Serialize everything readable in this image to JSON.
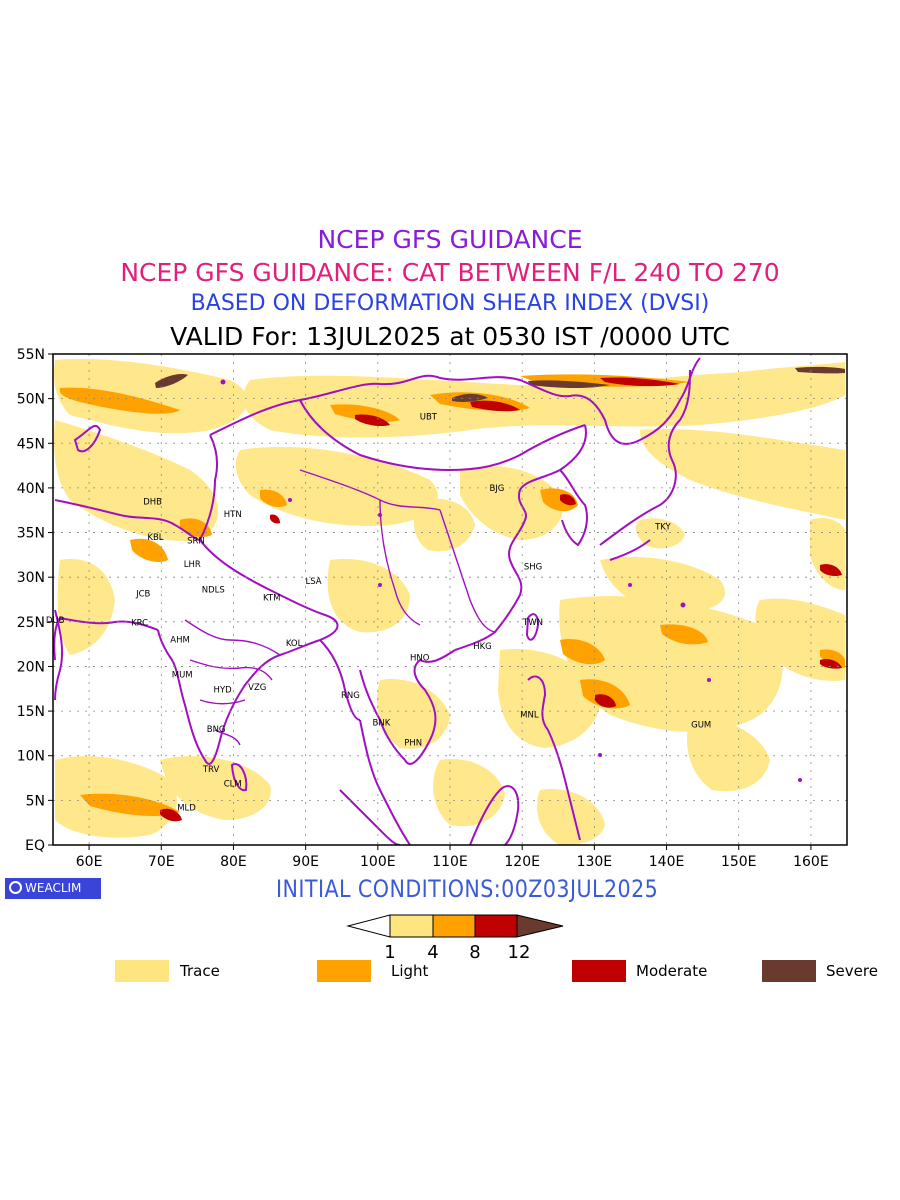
{
  "titles": {
    "line1": "NCEP GFS GUIDANCE",
    "line2": "NCEP GFS GUIDANCE: CAT BETWEEN F/L 240 TO 270",
    "line3": "BASED ON DEFORMATION SHEAR INDEX (DVSI)",
    "line4": "VALID For: 13JUL2025 at 0530 IST /0000 UTC"
  },
  "colors": {
    "line1": "#8a1bd6",
    "line2": "#e0207a",
    "line3": "#2a43e0",
    "line4": "#000000",
    "init": "#3a5ad8",
    "border": "#a010c0",
    "trace": "#ffe57f",
    "light": "#ffa200",
    "moderate": "#c00000",
    "severe": "#6b3a2e"
  },
  "map": {
    "lon_range": [
      55,
      165
    ],
    "lat_range": [
      0,
      55
    ],
    "lon_ticks": [
      "60E",
      "70E",
      "80E",
      "90E",
      "100E",
      "110E",
      "120E",
      "130E",
      "140E",
      "150E",
      "160E"
    ],
    "lat_ticks": [
      "EQ",
      "5N",
      "10N",
      "15N",
      "20N",
      "25N",
      "30N",
      "35N",
      "40N",
      "45N",
      "50N",
      "55N"
    ],
    "stations": [
      {
        "name": "UBT",
        "lon": 107,
        "lat": 48
      },
      {
        "name": "BJG",
        "lon": 116.5,
        "lat": 40
      },
      {
        "name": "TKY",
        "lon": 139.5,
        "lat": 35.7
      },
      {
        "name": "SHG",
        "lon": 121.5,
        "lat": 31.2
      },
      {
        "name": "TWN",
        "lon": 121.5,
        "lat": 25
      },
      {
        "name": "HKG",
        "lon": 114.5,
        "lat": 22.3
      },
      {
        "name": "HNO",
        "lon": 105.8,
        "lat": 21
      },
      {
        "name": "RNG",
        "lon": 96.2,
        "lat": 16.8
      },
      {
        "name": "BNK",
        "lon": 100.5,
        "lat": 13.7
      },
      {
        "name": "PHN",
        "lon": 104.9,
        "lat": 11.5
      },
      {
        "name": "MNL",
        "lon": 121,
        "lat": 14.6
      },
      {
        "name": "GUM",
        "lon": 144.8,
        "lat": 13.5
      },
      {
        "name": "DHB",
        "lon": 68.8,
        "lat": 38.5
      },
      {
        "name": "HTN",
        "lon": 79.9,
        "lat": 37.1
      },
      {
        "name": "KBL",
        "lon": 69.2,
        "lat": 34.5
      },
      {
        "name": "SRN",
        "lon": 74.8,
        "lat": 34.1
      },
      {
        "name": "LHR",
        "lon": 74.3,
        "lat": 31.5
      },
      {
        "name": "LSA",
        "lon": 91.1,
        "lat": 29.6
      },
      {
        "name": "JCB",
        "lon": 67.5,
        "lat": 28.2
      },
      {
        "name": "NDLS",
        "lon": 77.2,
        "lat": 28.6
      },
      {
        "name": "KTM",
        "lon": 85.3,
        "lat": 27.7
      },
      {
        "name": "DUB",
        "lon": 55.3,
        "lat": 25.2
      },
      {
        "name": "KRC",
        "lon": 67,
        "lat": 24.9
      },
      {
        "name": "AHM",
        "lon": 72.6,
        "lat": 23
      },
      {
        "name": "KOL",
        "lon": 88.4,
        "lat": 22.6
      },
      {
        "name": "MUM",
        "lon": 72.9,
        "lat": 19.1
      },
      {
        "name": "HYD",
        "lon": 78.5,
        "lat": 17.4
      },
      {
        "name": "VZG",
        "lon": 83.3,
        "lat": 17.7
      },
      {
        "name": "BNG",
        "lon": 77.6,
        "lat": 13
      },
      {
        "name": "TRV",
        "lon": 76.9,
        "lat": 8.5
      },
      {
        "name": "CLM",
        "lon": 79.9,
        "lat": 6.9
      },
      {
        "name": "MLD",
        "lon": 73.5,
        "lat": 4.2
      }
    ]
  },
  "initial_conditions": "INITIAL CONDITIONS:00Z03JUL2025",
  "logo_text": "WEACLIM",
  "colorbar": {
    "ticks": [
      "1",
      "4",
      "8",
      "12"
    ]
  },
  "legend": [
    {
      "label": "Trace",
      "color": "#ffe57f"
    },
    {
      "label": "Light",
      "color": "#ffa200"
    },
    {
      "label": "Moderate",
      "color": "#c00000"
    },
    {
      "label": "Severe",
      "color": "#6b3a2e"
    }
  ]
}
